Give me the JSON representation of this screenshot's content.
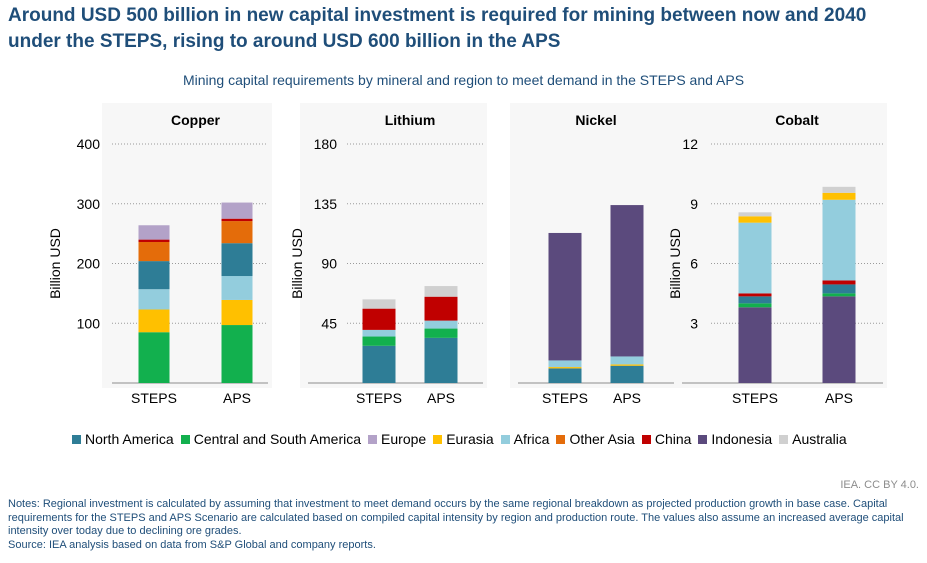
{
  "headline": "Around USD 500 billion in new capital investment is required for mining between now and 2040 under the STEPS, rising to around USD 600 billion in the APS",
  "subtitle": "Mining capital requirements by mineral and region to meet demand in the STEPS and APS",
  "credit": "IEA. CC BY 4.0.",
  "notes": "Notes: Regional investment is calculated by assuming that investment to meet demand occurs by the same regional breakdown as projected production growth in base case. Capital requirements for the STEPS and APS Scenario are calculated based on compiled capital intensity by region and production route. The values also assume an increased average capital intensity over today due to declining ore grades.",
  "source": "Source: IEA analysis based on data from S&P Global and company reports.",
  "colors": {
    "North America": "#2e7d96",
    "Central and South America": "#12b04e",
    "Europe": "#b3a2c8",
    "Eurasia": "#ffc000",
    "Africa": "#93cddd",
    "Other Asia": "#e46c0a",
    "China": "#c00000",
    "Indonesia": "#5b4a7d",
    "Australia": "#d0d0d0"
  },
  "chart_data": [
    {
      "type": "bar",
      "stacked": true,
      "title": "Copper",
      "ylabel": "Billion USD",
      "ylim": [
        0,
        400
      ],
      "yticks": [
        100,
        200,
        300,
        400
      ],
      "categories": [
        "STEPS",
        "APS"
      ],
      "series": [
        {
          "name": "Central and South America",
          "values": [
            85,
            97
          ]
        },
        {
          "name": "Eurasia",
          "values": [
            38,
            42
          ]
        },
        {
          "name": "Africa",
          "values": [
            34,
            40
          ]
        },
        {
          "name": "North America",
          "values": [
            47,
            55
          ]
        },
        {
          "name": "Other Asia",
          "values": [
            32,
            37
          ]
        },
        {
          "name": "China",
          "values": [
            4,
            4
          ]
        },
        {
          "name": "Europe",
          "values": [
            24,
            27
          ]
        }
      ]
    },
    {
      "type": "bar",
      "stacked": true,
      "title": "Lithium",
      "ylabel": "Billion USD",
      "ylim": [
        0,
        180
      ],
      "yticks": [
        45,
        90,
        135,
        180
      ],
      "categories": [
        "STEPS",
        "APS"
      ],
      "series": [
        {
          "name": "North America",
          "values": [
            28,
            34
          ]
        },
        {
          "name": "Central and South America",
          "values": [
            7,
            7
          ]
        },
        {
          "name": "Africa",
          "values": [
            5,
            6
          ]
        },
        {
          "name": "China",
          "values": [
            16,
            18
          ]
        },
        {
          "name": "Australia",
          "values": [
            7,
            8
          ]
        }
      ]
    },
    {
      "type": "bar",
      "stacked": true,
      "title": "Nickel",
      "ylabel": "",
      "ylim": [
        0,
        180
      ],
      "yticks": [],
      "categories": [
        "STEPS",
        "APS"
      ],
      "series": [
        {
          "name": "North America",
          "values": [
            11,
            13
          ]
        },
        {
          "name": "Eurasia",
          "values": [
            1,
            1
          ]
        },
        {
          "name": "Africa",
          "values": [
            5,
            6
          ]
        },
        {
          "name": "Indonesia",
          "values": [
            96,
            114
          ]
        }
      ]
    },
    {
      "type": "bar",
      "stacked": true,
      "title": "Cobalt",
      "ylabel": "Billion USD",
      "ylim": [
        0,
        12
      ],
      "yticks": [
        3,
        6,
        9,
        12
      ],
      "categories": [
        "STEPS",
        "APS"
      ],
      "series": [
        {
          "name": "Indonesia",
          "values": [
            3.8,
            4.35
          ]
        },
        {
          "name": "Central and South America",
          "values": [
            0.2,
            0.15
          ]
        },
        {
          "name": "North America",
          "values": [
            0.35,
            0.45
          ]
        },
        {
          "name": "China",
          "values": [
            0.15,
            0.2
          ]
        },
        {
          "name": "Africa",
          "values": [
            3.55,
            4.05
          ]
        },
        {
          "name": "Eurasia",
          "values": [
            0.32,
            0.35
          ]
        },
        {
          "name": "Australia",
          "values": [
            0.2,
            0.3
          ]
        }
      ]
    }
  ],
  "legend": [
    "North America",
    "Central and South America",
    "Europe",
    "Eurasia",
    "Africa",
    "Other Asia",
    "China",
    "Indonesia",
    "Australia"
  ]
}
